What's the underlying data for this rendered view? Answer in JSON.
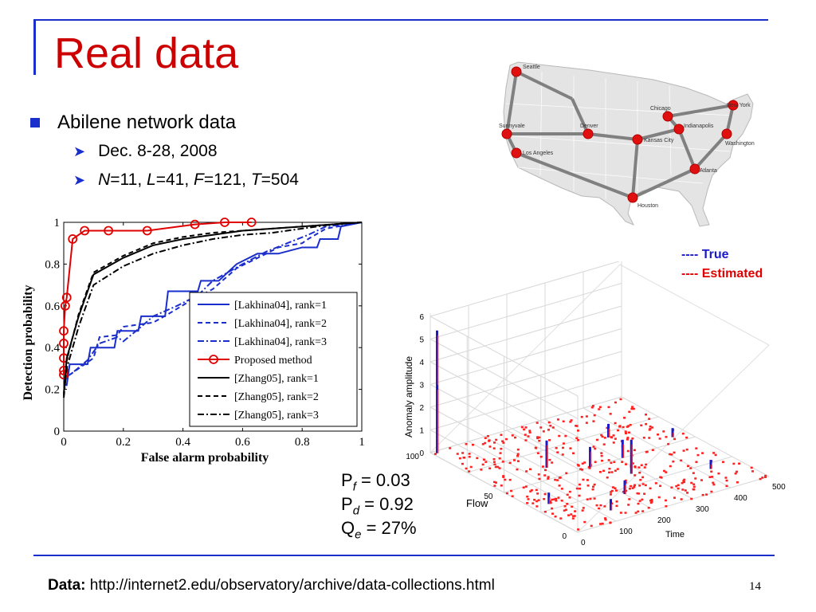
{
  "slide": {
    "title": "Real data",
    "bullet": "Abilene network data",
    "sub_dates": "Dec. 8-28, 2008",
    "sub_params_N": "N",
    "sub_params_N_val": "=11,",
    "sub_params_L": "L",
    "sub_params_L_val": "=41,",
    "sub_params_F": "F",
    "sub_params_F_val": "=121,",
    "sub_params_T": "T",
    "sub_params_T_val": "=504",
    "footer_label": "Data:",
    "footer_url": "http://internet2.edu/observatory/archive/data-collections.html",
    "page_number": "14"
  },
  "stats": {
    "pf_label": "P",
    "pf_sub": "f",
    "pf_value": " = 0.03",
    "pd_label": "P",
    "pd_sub": "d",
    "pd_value": " = 0.92",
    "qe_label": "Q",
    "qe_sub": "e",
    "qe_value": " = 27%"
  },
  "map": {
    "cities": [
      "Seattle",
      "Sunnyvale",
      "Los Angeles",
      "Denver",
      "Kansas City",
      "Houston",
      "Chicago",
      "Indianapolis",
      "Atlanta",
      "New York",
      "Washington"
    ]
  },
  "plot3d": {
    "legend_true": "---- True",
    "legend_estimated": "----  Estimated",
    "zlabel": "Anomaly amplitude",
    "ylabel": "Flow",
    "xlabel": "Time",
    "z_ticks": [
      "0",
      "1",
      "2",
      "3",
      "4",
      "5",
      "6"
    ],
    "flow_ticks": [
      "0",
      "50",
      "100"
    ],
    "time_ticks": [
      "0",
      "100",
      "200",
      "300",
      "400",
      "500"
    ]
  },
  "chart_data": {
    "type": "line",
    "xlabel": "False alarm probability",
    "ylabel": "Detection probability",
    "xlim": [
      0,
      1
    ],
    "ylim": [
      0,
      1
    ],
    "x_ticks": [
      "0",
      "0.2",
      "0.4",
      "0.6",
      "0.8",
      "1"
    ],
    "y_ticks": [
      "0",
      "0.2",
      "0.4",
      "0.6",
      "0.8",
      "1"
    ],
    "legend_position": "center-right",
    "series": [
      {
        "name": "[Lakhina04], rank=1",
        "color": "#1a2ecc",
        "dash": "solid",
        "marker": "none",
        "x": [
          0,
          0.01,
          0.02,
          0.08,
          0.09,
          0.17,
          0.18,
          0.25,
          0.26,
          0.34,
          0.35,
          0.45,
          0.46,
          0.52,
          0.55,
          0.58,
          0.65,
          0.72,
          0.8,
          0.85,
          0.86,
          0.92,
          0.93,
          1
        ],
        "y": [
          0.22,
          0.22,
          0.32,
          0.32,
          0.4,
          0.4,
          0.48,
          0.48,
          0.55,
          0.55,
          0.67,
          0.67,
          0.72,
          0.72,
          0.76,
          0.8,
          0.85,
          0.85,
          0.88,
          0.88,
          0.92,
          0.92,
          0.98,
          1
        ]
      },
      {
        "name": "[Lakhina04], rank=2",
        "color": "#1a2ecc",
        "dash": "dashed",
        "marker": "none",
        "x": [
          0,
          0.02,
          0.05,
          0.1,
          0.12,
          0.18,
          0.2,
          0.3,
          0.35,
          0.42,
          0.5,
          0.58,
          0.68,
          0.72,
          0.8,
          0.82,
          0.88,
          1
        ],
        "y": [
          0.24,
          0.27,
          0.3,
          0.35,
          0.45,
          0.46,
          0.5,
          0.52,
          0.56,
          0.62,
          0.68,
          0.78,
          0.85,
          0.88,
          0.9,
          0.92,
          0.97,
          1
        ]
      },
      {
        "name": "[Lakhina04], rank=3",
        "color": "#1a2ecc",
        "dash": "dashdot",
        "marker": "none",
        "x": [
          0,
          0.03,
          0.08,
          0.12,
          0.18,
          0.2,
          0.26,
          0.3,
          0.38,
          0.45,
          0.5,
          0.6,
          0.68,
          0.75,
          0.82,
          0.88,
          1
        ],
        "y": [
          0.25,
          0.28,
          0.34,
          0.42,
          0.45,
          0.43,
          0.5,
          0.55,
          0.6,
          0.65,
          0.72,
          0.8,
          0.86,
          0.9,
          0.94,
          0.98,
          1
        ]
      },
      {
        "name": "Proposed method",
        "color": "#e00000",
        "dash": "solid",
        "marker": "circle",
        "x": [
          0,
          0,
          0,
          0,
          0,
          0.005,
          0.01,
          0.03,
          0.07,
          0.15,
          0.28,
          0.44,
          0.54,
          0.63
        ],
        "y": [
          0.27,
          0.29,
          0.35,
          0.42,
          0.48,
          0.6,
          0.64,
          0.92,
          0.96,
          0.96,
          0.96,
          0.99,
          1.0,
          1.0
        ]
      },
      {
        "name": "[Zhang05], rank=1",
        "color": "#000000",
        "dash": "solid",
        "marker": "none",
        "x": [
          0,
          0.01,
          0.05,
          0.1,
          0.2,
          0.3,
          0.4,
          0.5,
          0.6,
          0.7,
          0.8,
          0.9,
          1
        ],
        "y": [
          0.18,
          0.35,
          0.55,
          0.75,
          0.83,
          0.89,
          0.92,
          0.94,
          0.96,
          0.97,
          0.98,
          0.99,
          1
        ]
      },
      {
        "name": "[Zhang05], rank=2",
        "color": "#000000",
        "dash": "dashed",
        "marker": "none",
        "x": [
          0,
          0.01,
          0.05,
          0.1,
          0.2,
          0.3,
          0.4,
          0.5,
          0.6,
          0.7,
          0.8,
          0.9,
          1
        ],
        "y": [
          0.17,
          0.34,
          0.56,
          0.76,
          0.84,
          0.9,
          0.93,
          0.95,
          0.96,
          0.97,
          0.98,
          0.99,
          1
        ]
      },
      {
        "name": "[Zhang05], rank=3",
        "color": "#000000",
        "dash": "dashdot",
        "marker": "none",
        "x": [
          0,
          0.01,
          0.05,
          0.1,
          0.2,
          0.3,
          0.4,
          0.5,
          0.6,
          0.7,
          0.8,
          0.9,
          1
        ],
        "y": [
          0.16,
          0.3,
          0.5,
          0.7,
          0.79,
          0.85,
          0.89,
          0.92,
          0.94,
          0.95,
          0.97,
          0.99,
          1
        ]
      }
    ]
  }
}
